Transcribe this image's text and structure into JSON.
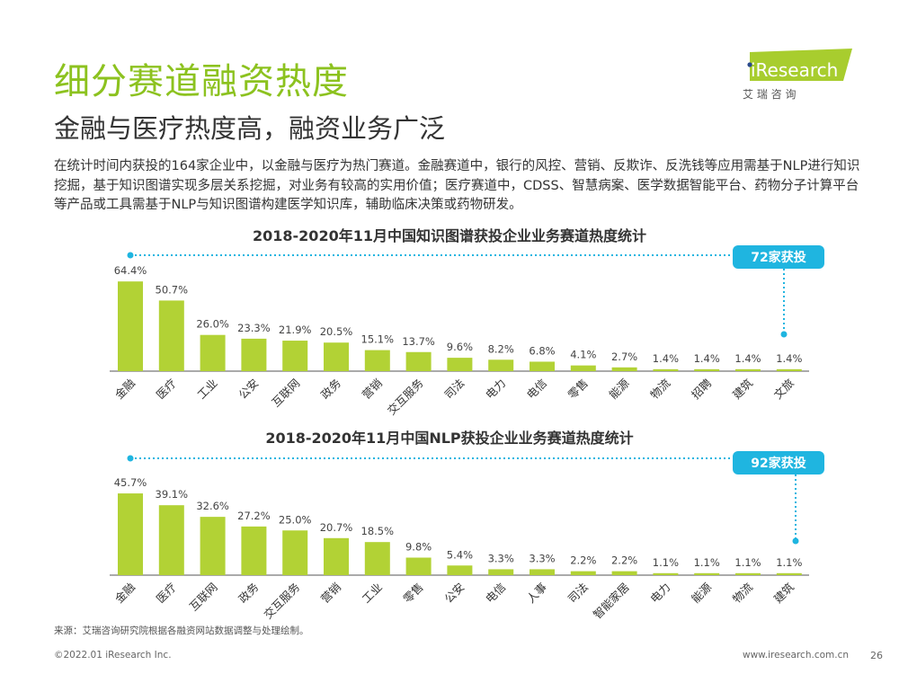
{
  "title": "细分赛道融资热度",
  "subtitle": "金融与医疗热度高，融资业务广泛",
  "description": "在统计时间内获投的164家企业中，以金融与医疗为热门赛道。金融赛道中，银行的风控、营销、反欺诈、反洗钱等应用需基于NLP进行知识挖掘，基于知识图谱实现多层关系挖掘，对业务有较高的实用价值；医疗赛道中，CDSS、智慧病案、医学数据智能平台、药物分子计算平台等产品或工具需基于NLP与知识图谱构建医学知识库，辅助临床决策或药物研发。",
  "logo": {
    "brand": "iResearch",
    "cn": "艾 瑞 咨 询"
  },
  "colors": {
    "title": "#8cc21f",
    "bar": "#b2d235",
    "badge": "#1fb5e0",
    "text": "#333333"
  },
  "chart_data": [
    {
      "type": "bar",
      "title": "2018-2020年11月中国知识图谱获投企业业务赛道热度统计",
      "badge": "72家获投",
      "categories": [
        "金融",
        "医疗",
        "工业",
        "公安",
        "互联网",
        "政务",
        "营销",
        "交互服务",
        "司法",
        "电力",
        "电信",
        "零售",
        "能源",
        "物流",
        "招聘",
        "建筑",
        "文旅"
      ],
      "values": [
        64.4,
        50.7,
        26.0,
        23.3,
        21.9,
        20.5,
        15.1,
        13.7,
        9.6,
        8.2,
        6.8,
        4.1,
        2.7,
        1.4,
        1.4,
        1.4,
        1.4
      ],
      "labels": [
        "64.4%",
        "50.7%",
        "26.0%",
        "23.3%",
        "21.9%",
        "20.5%",
        "15.1%",
        "13.7%",
        "9.6%",
        "8.2%",
        "6.8%",
        "4.1%",
        "2.7%",
        "1.4%",
        "1.4%",
        "1.4%",
        "1.4%"
      ],
      "unit": "%"
    },
    {
      "type": "bar",
      "title": "2018-2020年11月中国NLP获投企业业务赛道热度统计",
      "badge": "92家获投",
      "categories": [
        "金融",
        "医疗",
        "互联网",
        "政务",
        "交互服务",
        "营销",
        "工业",
        "零售",
        "公安",
        "电信",
        "人事",
        "司法",
        "智能家居",
        "电力",
        "能源",
        "物流",
        "建筑"
      ],
      "values": [
        45.7,
        39.1,
        32.6,
        27.2,
        25.0,
        20.7,
        18.5,
        9.8,
        5.4,
        3.3,
        3.3,
        2.2,
        2.2,
        1.1,
        1.1,
        1.1,
        1.1
      ],
      "labels": [
        "45.7%",
        "39.1%",
        "32.6%",
        "27.2%",
        "25.0%",
        "20.7%",
        "18.5%",
        "9.8%",
        "5.4%",
        "3.3%",
        "3.3%",
        "2.2%",
        "2.2%",
        "1.1%",
        "1.1%",
        "1.1%",
        "1.1%"
      ],
      "unit": "%"
    }
  ],
  "source": "来源：艾瑞咨询研究院根据各融资网站数据调整与处理绘制。",
  "footer": {
    "copyright": "©2022.01 iResearch Inc.",
    "url": "www.iresearch.com.cn",
    "page": "26"
  }
}
